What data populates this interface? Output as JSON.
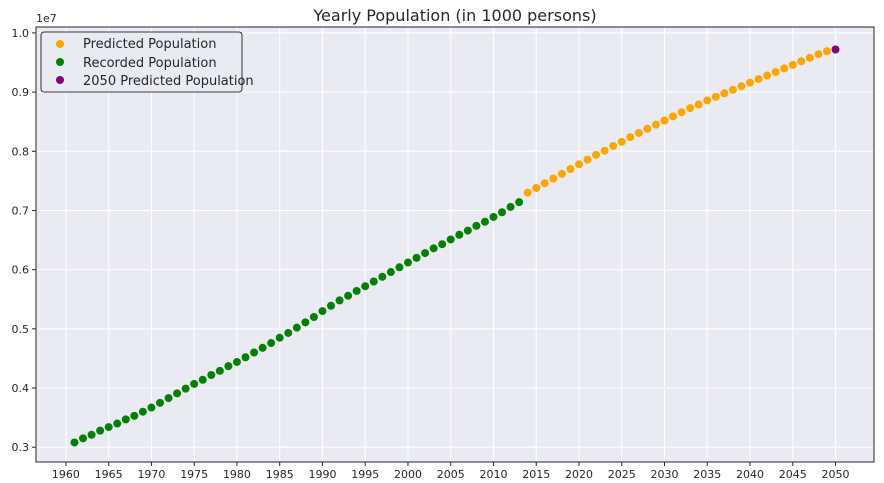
{
  "chart_data": {
    "type": "scatter",
    "title": "Yearly Population (in 1000 persons)",
    "xlabel": "",
    "ylabel": "",
    "y_offset_text": "1e7",
    "xlim": [
      1956.5,
      2054.5
    ],
    "ylim": [
      2.75,
      10.1
    ],
    "x_ticks": [
      "1960",
      "1965",
      "1970",
      "1975",
      "1980",
      "1985",
      "1990",
      "1995",
      "2000",
      "2005",
      "2010",
      "2015",
      "2020",
      "2025",
      "2030",
      "2035",
      "2040",
      "2045",
      "2050"
    ],
    "y_ticks": [
      "0.3",
      "0.4",
      "0.5",
      "0.6",
      "0.7",
      "0.8",
      "0.9",
      "1.0"
    ],
    "grid": true,
    "legend_position": "top-left",
    "series": [
      {
        "name": "Predicted Population",
        "color": "#FFA500",
        "x": [
          2014,
          2015,
          2016,
          2017,
          2018,
          2019,
          2020,
          2021,
          2022,
          2023,
          2024,
          2025,
          2026,
          2027,
          2028,
          2029,
          2030,
          2031,
          2032,
          2033,
          2034,
          2035,
          2036,
          2037,
          2038,
          2039,
          2040,
          2041,
          2042,
          2043,
          2044,
          2045,
          2046,
          2047,
          2048,
          2049
        ],
        "y": [
          7.3,
          7.38,
          7.46,
          7.54,
          7.62,
          7.7,
          7.78,
          7.86,
          7.94,
          8.01,
          8.09,
          8.16,
          8.24,
          8.31,
          8.38,
          8.45,
          8.52,
          8.59,
          8.66,
          8.73,
          8.79,
          8.86,
          8.92,
          8.98,
          9.04,
          9.1,
          9.16,
          9.22,
          9.28,
          9.34,
          9.4,
          9.46,
          9.52,
          9.58,
          9.64,
          9.69
        ]
      },
      {
        "name": "Recorded Population",
        "color": "#008000",
        "x": [
          1961,
          1962,
          1963,
          1964,
          1965,
          1966,
          1967,
          1968,
          1969,
          1970,
          1971,
          1972,
          1973,
          1974,
          1975,
          1976,
          1977,
          1978,
          1979,
          1980,
          1981,
          1982,
          1983,
          1984,
          1985,
          1986,
          1987,
          1988,
          1989,
          1990,
          1991,
          1992,
          1993,
          1994,
          1995,
          1996,
          1997,
          1998,
          1999,
          2000,
          2001,
          2002,
          2003,
          2004,
          2005,
          2006,
          2007,
          2008,
          2009,
          2010,
          2011,
          2012,
          2013
        ],
        "y": [
          3.08,
          3.15,
          3.21,
          3.28,
          3.34,
          3.4,
          3.47,
          3.53,
          3.6,
          3.67,
          3.75,
          3.83,
          3.91,
          3.99,
          4.07,
          4.14,
          4.22,
          4.29,
          4.37,
          4.44,
          4.52,
          4.6,
          4.68,
          4.76,
          4.85,
          4.93,
          5.02,
          5.11,
          5.2,
          5.3,
          5.39,
          5.48,
          5.56,
          5.64,
          5.72,
          5.8,
          5.88,
          5.96,
          6.04,
          6.12,
          6.2,
          6.28,
          6.36,
          6.43,
          6.51,
          6.59,
          6.66,
          6.74,
          6.81,
          6.89,
          6.97,
          7.06,
          7.14
        ]
      },
      {
        "name": "2050 Predicted Population",
        "color": "#800080",
        "x": [
          2050
        ],
        "y": [
          9.72
        ]
      }
    ]
  }
}
